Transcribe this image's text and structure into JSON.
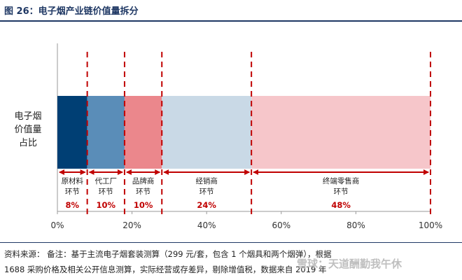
{
  "figure": {
    "title": "图 26：电子烟产业链价值量拆分",
    "source_line1": "资料来源：  备注：基于主流电子烟套装测算（299 元/套，包含 1 个烟具和两个烟弹），根据",
    "source_line2": "1688 采购价格及相关公开信息测算，实际经营或存差异，剔除增值税，数据来自 2019 年",
    "watermark": "雪球：天道酬勤我午休"
  },
  "chart_data": {
    "type": "bar",
    "orientation": "horizontal-stacked",
    "category": "电子烟价值量占比",
    "category_lines": [
      "电子烟",
      "价值量",
      "占比"
    ],
    "xlim": [
      0,
      100
    ],
    "x_ticks": [
      0,
      20,
      40,
      60,
      80,
      100
    ],
    "x_tick_labels": [
      "0%",
      "20%",
      "40%",
      "60%",
      "80%",
      "100%"
    ],
    "boundaries": [
      0,
      8,
      18,
      28,
      52,
      100
    ],
    "segments": [
      {
        "label_lines": [
          "原材料",
          "环节"
        ],
        "value": 8,
        "value_label": "8%",
        "color": "#003f74"
      },
      {
        "label_lines": [
          "代工厂",
          "环节"
        ],
        "value": 10,
        "value_label": "10%",
        "color": "#5a8db8"
      },
      {
        "label_lines": [
          "品牌商",
          "环节"
        ],
        "value": 10,
        "value_label": "10%",
        "color": "#eb878c"
      },
      {
        "label_lines": [
          "经销商",
          "环节"
        ],
        "value": 24,
        "value_label": "24%",
        "color": "#c9d9e6"
      },
      {
        "label_lines": [
          "终端零售商",
          "环节"
        ],
        "value": 48,
        "value_label": "48%",
        "color": "#f6c6ca"
      }
    ],
    "guide_color": "#c00000",
    "value_label_color": "#c00000"
  }
}
